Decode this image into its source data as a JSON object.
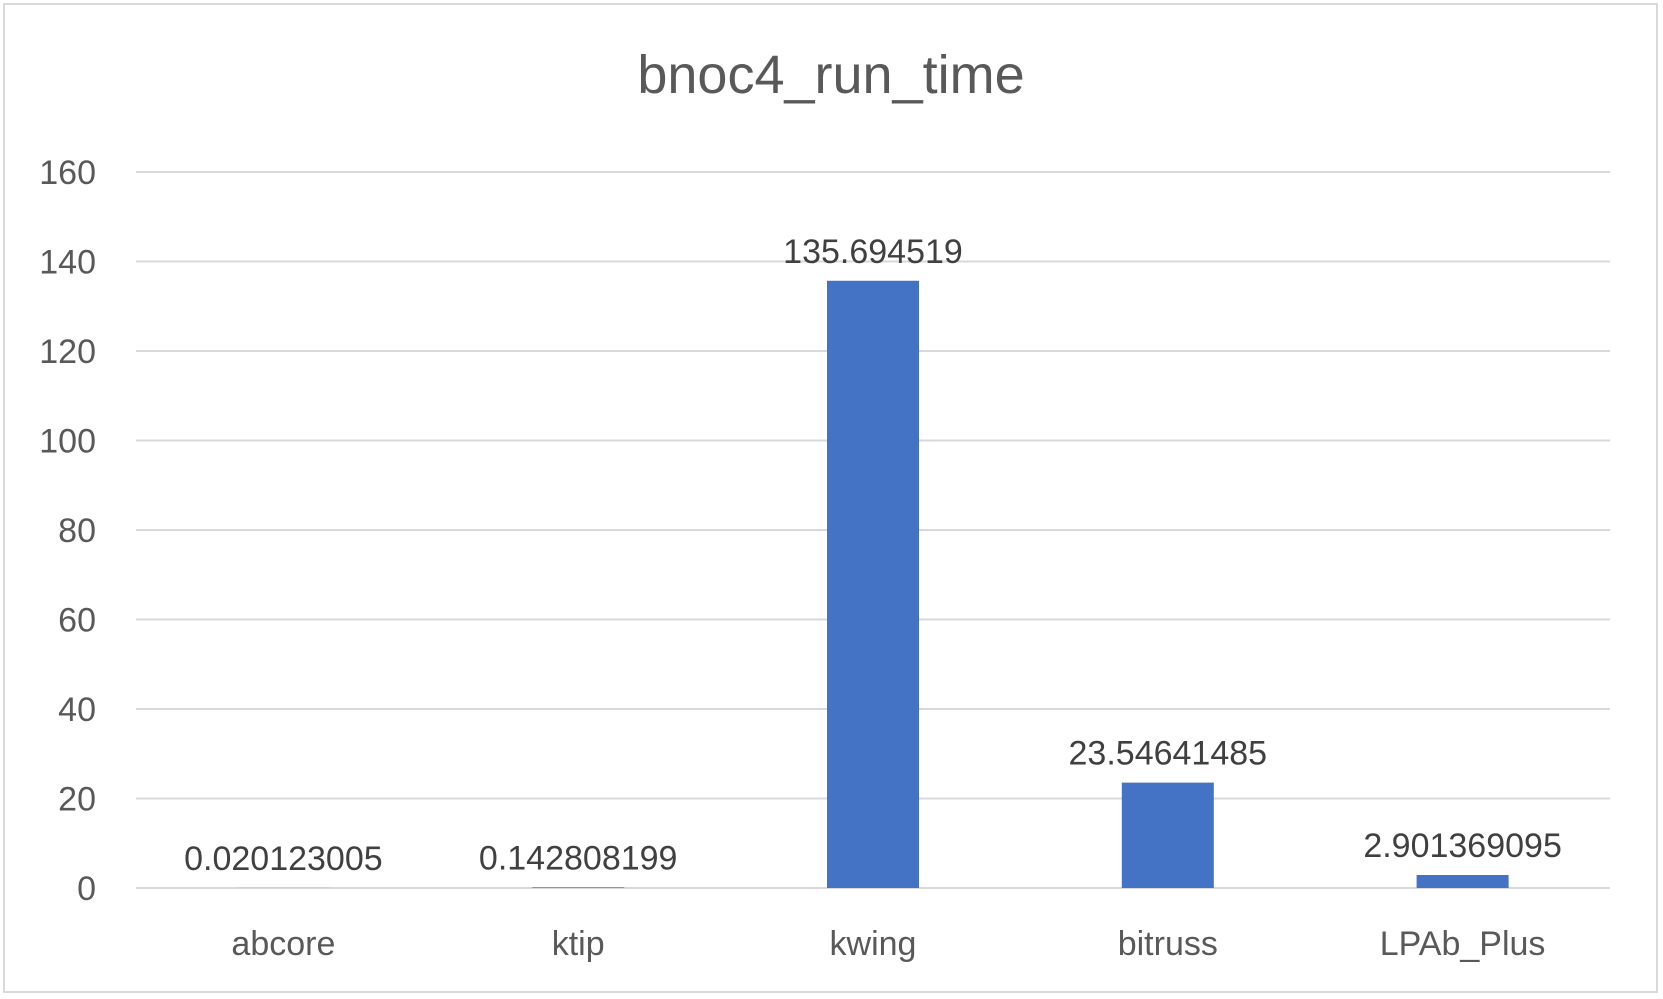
{
  "chart_data": {
    "type": "bar",
    "title": "bnoc4_run_time",
    "xlabel": "",
    "ylabel": "",
    "categories": [
      "abcore",
      "ktip",
      "kwing",
      "bitruss",
      "LPAb_Plus"
    ],
    "values": [
      0.020123005,
      0.142808199,
      135.694519,
      23.54641485,
      2.901369095
    ],
    "data_labels": [
      "0.020123005",
      "0.142808199",
      "135.694519",
      "23.54641485",
      "2.901369095"
    ],
    "ylim": [
      0,
      160
    ],
    "yticks": [
      0,
      20,
      40,
      60,
      80,
      100,
      120,
      140,
      160
    ],
    "grid": true,
    "legend": "none",
    "bar_color": "#4472c4",
    "grid_color": "#d9d9d9"
  }
}
